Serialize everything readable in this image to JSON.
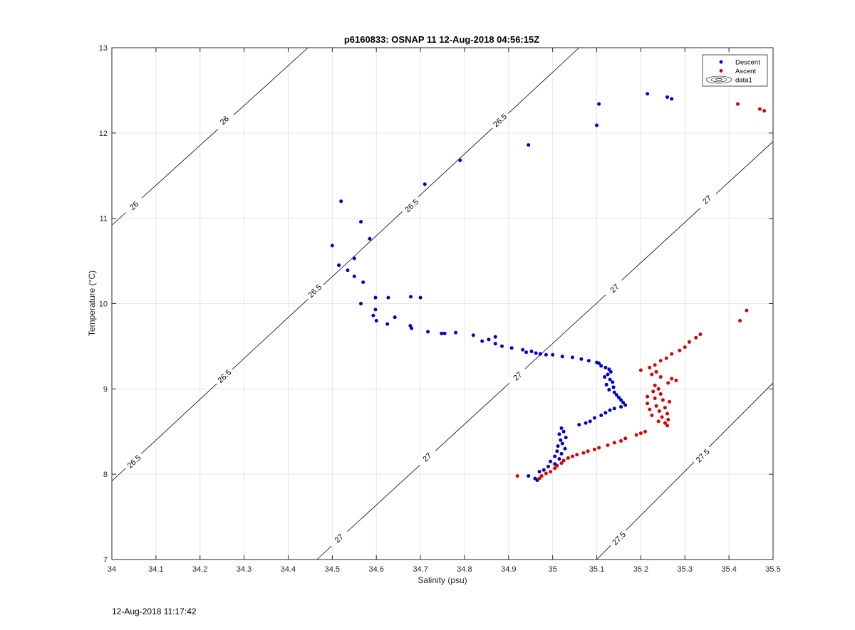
{
  "figure_timestamp": "12-Aug-2018 11:17:42",
  "chart_data": {
    "type": "scatter",
    "title": "p6160833: OSNAP 11 12-Aug-2018 04:56:15Z",
    "xlabel": "Salinity (psu)",
    "ylabel": "Temperature (°C)",
    "xlim": [
      34,
      35.5
    ],
    "ylim": [
      7,
      13
    ],
    "xticks": [
      34,
      34.1,
      34.2,
      34.3,
      34.4,
      34.5,
      34.6,
      34.7,
      34.8,
      34.9,
      35,
      35.1,
      35.2,
      35.3,
      35.4,
      35.5
    ],
    "xtick_labels": [
      "34",
      "34.1",
      "34.2",
      "34.3",
      "34.4",
      "34.5",
      "34.6",
      "34.7",
      "34.8",
      "34.9",
      "35",
      "35.1",
      "35.2",
      "35.3",
      "35.4",
      "35.5"
    ],
    "yticks": [
      7,
      8,
      9,
      10,
      11,
      12,
      13
    ],
    "ytick_labels": [
      "7",
      "8",
      "9",
      "10",
      "11",
      "12",
      "13"
    ],
    "grid": true,
    "legend_position": "top-right",
    "legend": [
      "Descent",
      "Ascent",
      "data1"
    ],
    "series": [
      {
        "name": "Descent",
        "color": "#0000cc",
        "points": [
          [
            34.52,
            11.2
          ],
          [
            34.565,
            10.96
          ],
          [
            34.585,
            10.76
          ],
          [
            34.5,
            10.68
          ],
          [
            34.515,
            10.45
          ],
          [
            34.55,
            10.53
          ],
          [
            34.535,
            10.39
          ],
          [
            34.55,
            10.32
          ],
          [
            34.57,
            10.25
          ],
          [
            34.565,
            10.0
          ],
          [
            34.598,
            10.07
          ],
          [
            34.627,
            10.07
          ],
          [
            34.678,
            10.08
          ],
          [
            34.7,
            10.07
          ],
          [
            34.598,
            9.93
          ],
          [
            34.593,
            9.86
          ],
          [
            34.6,
            9.8
          ],
          [
            34.642,
            9.84
          ],
          [
            34.625,
            9.76
          ],
          [
            34.677,
            9.74
          ],
          [
            34.68,
            9.71
          ],
          [
            34.717,
            9.67
          ],
          [
            34.748,
            9.65
          ],
          [
            34.755,
            9.65
          ],
          [
            34.78,
            9.66
          ],
          [
            34.82,
            9.63
          ],
          [
            34.84,
            9.56
          ],
          [
            34.855,
            9.58
          ],
          [
            34.87,
            9.61
          ],
          [
            34.87,
            9.53
          ],
          [
            34.885,
            9.5
          ],
          [
            34.907,
            9.48
          ],
          [
            34.932,
            9.46
          ],
          [
            34.94,
            9.43
          ],
          [
            34.952,
            9.44
          ],
          [
            34.962,
            9.42
          ],
          [
            34.972,
            9.41
          ],
          [
            34.985,
            9.4
          ],
          [
            35.0,
            9.4
          ],
          [
            35.022,
            9.38
          ],
          [
            35.045,
            9.37
          ],
          [
            35.065,
            9.35
          ],
          [
            35.082,
            9.33
          ],
          [
            35.1,
            9.31
          ],
          [
            35.105,
            9.3
          ],
          [
            35.11,
            9.27
          ],
          [
            35.12,
            9.25
          ],
          [
            35.128,
            9.23
          ],
          [
            35.132,
            9.2
          ],
          [
            35.125,
            9.17
          ],
          [
            35.118,
            9.14
          ],
          [
            35.13,
            9.11
          ],
          [
            35.136,
            9.08
          ],
          [
            35.122,
            9.05
          ],
          [
            35.138,
            9.02
          ],
          [
            35.128,
            8.99
          ],
          [
            35.14,
            8.96
          ],
          [
            35.145,
            8.93
          ],
          [
            35.15,
            8.9
          ],
          [
            35.155,
            8.87
          ],
          [
            35.16,
            8.84
          ],
          [
            35.165,
            8.81
          ],
          [
            35.155,
            8.79
          ],
          [
            35.14,
            8.77
          ],
          [
            35.13,
            8.75
          ],
          [
            35.12,
            8.72
          ],
          [
            35.11,
            8.69
          ],
          [
            35.095,
            8.66
          ],
          [
            35.085,
            8.62
          ],
          [
            35.075,
            8.6
          ],
          [
            35.06,
            8.58
          ],
          [
            35.02,
            8.54
          ],
          [
            35.025,
            8.5
          ],
          [
            35.015,
            8.47
          ],
          [
            35.03,
            8.43
          ],
          [
            35.018,
            8.4
          ],
          [
            35.022,
            8.36
          ],
          [
            35.012,
            8.33
          ],
          [
            35.028,
            8.3
          ],
          [
            35.01,
            8.27
          ],
          [
            35.02,
            8.24
          ],
          [
            35.005,
            8.21
          ],
          [
            35.015,
            8.18
          ],
          [
            34.995,
            8.15
          ],
          [
            35.005,
            8.12
          ],
          [
            34.99,
            8.09
          ],
          [
            34.98,
            8.05
          ],
          [
            34.97,
            8.03
          ],
          [
            34.96,
            7.95
          ],
          [
            34.965,
            7.93
          ],
          [
            34.945,
            7.98
          ],
          [
            34.79,
            11.68
          ],
          [
            34.71,
            11.4
          ],
          [
            34.945,
            11.86
          ],
          [
            35.1,
            12.09
          ],
          [
            35.105,
            12.34
          ],
          [
            35.215,
            12.46
          ],
          [
            35.26,
            12.42
          ],
          [
            35.27,
            12.4
          ]
        ]
      },
      {
        "name": "Ascent",
        "color": "#dd0000",
        "points": [
          [
            35.42,
            12.34
          ],
          [
            35.47,
            12.28
          ],
          [
            35.48,
            12.26
          ],
          [
            35.44,
            9.92
          ],
          [
            35.425,
            9.8
          ],
          [
            35.335,
            9.64
          ],
          [
            35.325,
            9.6
          ],
          [
            35.31,
            9.55
          ],
          [
            35.3,
            9.49
          ],
          [
            35.288,
            9.45
          ],
          [
            35.27,
            9.41
          ],
          [
            35.258,
            9.36
          ],
          [
            35.245,
            9.33
          ],
          [
            35.232,
            9.28
          ],
          [
            35.22,
            9.25
          ],
          [
            35.2,
            9.22
          ],
          [
            35.235,
            9.2
          ],
          [
            35.225,
            9.17
          ],
          [
            35.245,
            9.14
          ],
          [
            35.27,
            9.12
          ],
          [
            35.28,
            9.1
          ],
          [
            35.262,
            9.07
          ],
          [
            35.232,
            9.04
          ],
          [
            35.24,
            9.0
          ],
          [
            35.228,
            8.97
          ],
          [
            35.245,
            8.94
          ],
          [
            35.215,
            8.91
          ],
          [
            35.232,
            8.89
          ],
          [
            35.25,
            8.87
          ],
          [
            35.265,
            8.85
          ],
          [
            35.215,
            8.83
          ],
          [
            35.235,
            8.8
          ],
          [
            35.255,
            8.78
          ],
          [
            35.22,
            8.76
          ],
          [
            35.242,
            8.74
          ],
          [
            35.26,
            8.71
          ],
          [
            35.225,
            8.69
          ],
          [
            35.248,
            8.67
          ],
          [
            35.262,
            8.64
          ],
          [
            35.24,
            8.62
          ],
          [
            35.255,
            8.6
          ],
          [
            35.26,
            8.57
          ],
          [
            35.21,
            8.5
          ],
          [
            35.2,
            8.48
          ],
          [
            35.19,
            8.46
          ],
          [
            35.165,
            8.42
          ],
          [
            35.155,
            8.39
          ],
          [
            35.14,
            8.37
          ],
          [
            35.125,
            8.34
          ],
          [
            35.105,
            8.31
          ],
          [
            35.095,
            8.29
          ],
          [
            35.08,
            8.27
          ],
          [
            35.07,
            8.25
          ],
          [
            35.055,
            8.23
          ],
          [
            35.045,
            8.21
          ],
          [
            35.035,
            8.19
          ],
          [
            35.025,
            8.16
          ],
          [
            35.02,
            8.13
          ],
          [
            35.01,
            8.1
          ],
          [
            35.005,
            8.07
          ],
          [
            34.995,
            8.03
          ],
          [
            34.985,
            8.01
          ],
          [
            34.975,
            7.98
          ],
          [
            34.92,
            7.98
          ],
          [
            34.97,
            7.95
          ]
        ]
      }
    ],
    "contours": [
      {
        "label": "26",
        "start": [
          34.0,
          10.92
        ],
        "end": [
          34.445,
          13.0
        ],
        "label_positions": [
          [
            34.05,
            11.15
          ],
          [
            34.255,
            12.15
          ]
        ]
      },
      {
        "label": "26.5",
        "start": [
          34.0,
          7.92
        ],
        "end": [
          35.06,
          13.0
        ],
        "label_positions": [
          [
            34.05,
            8.15
          ],
          [
            34.255,
            9.15
          ],
          [
            34.46,
            10.15
          ],
          [
            34.68,
            11.15
          ],
          [
            34.88,
            12.15
          ]
        ]
      },
      {
        "label": "27",
        "start": [
          34.465,
          7.0
        ],
        "end": [
          35.5,
          11.9
        ],
        "label_positions": [
          [
            34.515,
            7.25
          ],
          [
            34.715,
            8.2
          ],
          [
            34.92,
            9.15
          ],
          [
            35.14,
            10.18
          ],
          [
            35.35,
            11.22
          ]
        ]
      },
      {
        "label": "27.5",
        "start": [
          35.1,
          7.0
        ],
        "end": [
          35.5,
          9.07
        ],
        "label_positions": [
          [
            35.15,
            7.25
          ],
          [
            35.34,
            8.22
          ]
        ]
      }
    ]
  }
}
